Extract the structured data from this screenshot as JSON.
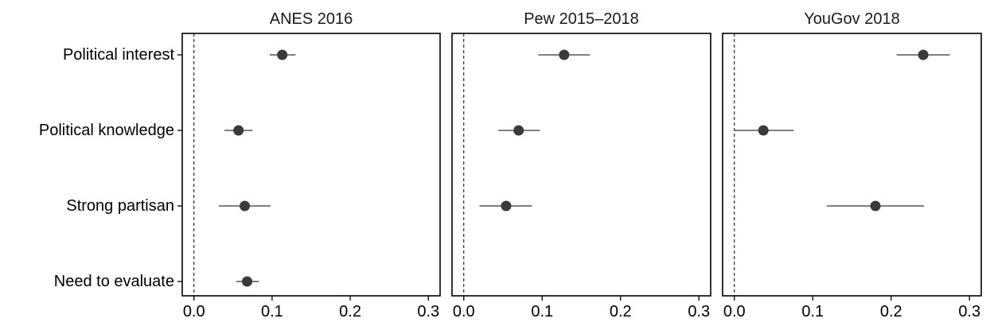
{
  "chart_data": {
    "type": "scatter",
    "subtype": "coefficient-plot",
    "categories": [
      "Political interest",
      "Political knowledge",
      "Strong partisan",
      "Need to evaluate"
    ],
    "x_ticks": [
      0.0,
      0.1,
      0.2,
      0.3
    ],
    "x_tick_labels": [
      "0.0",
      "0.1",
      "0.2",
      "0.3"
    ],
    "xlim": [
      -0.015,
      0.315
    ],
    "reference_line": 0,
    "grid": false,
    "point_color": "#3a3a3a",
    "line_color": "#333333",
    "panels": [
      {
        "title": "ANES 2016",
        "estimates": [
          {
            "category": "Political interest",
            "estimate": 0.113,
            "lower": 0.097,
            "upper": 0.13
          },
          {
            "category": "Political knowledge",
            "estimate": 0.057,
            "lower": 0.039,
            "upper": 0.075
          },
          {
            "category": "Strong partisan",
            "estimate": 0.065,
            "lower": 0.032,
            "upper": 0.098
          },
          {
            "category": "Need to evaluate",
            "estimate": 0.068,
            "lower": 0.054,
            "upper": 0.083
          }
        ]
      },
      {
        "title": "Pew 2015–2018",
        "estimates": [
          {
            "category": "Political interest",
            "estimate": 0.128,
            "lower": 0.095,
            "upper": 0.161
          },
          {
            "category": "Political knowledge",
            "estimate": 0.07,
            "lower": 0.044,
            "upper": 0.097
          },
          {
            "category": "Strong partisan",
            "estimate": 0.054,
            "lower": 0.02,
            "upper": 0.087
          }
        ]
      },
      {
        "title": "YouGov 2018",
        "estimates": [
          {
            "category": "Political interest",
            "estimate": 0.241,
            "lower": 0.207,
            "upper": 0.275
          },
          {
            "category": "Political knowledge",
            "estimate": 0.037,
            "lower": 0.0,
            "upper": 0.076
          },
          {
            "category": "Strong partisan",
            "estimate": 0.18,
            "lower": 0.118,
            "upper": 0.242
          }
        ]
      }
    ]
  }
}
